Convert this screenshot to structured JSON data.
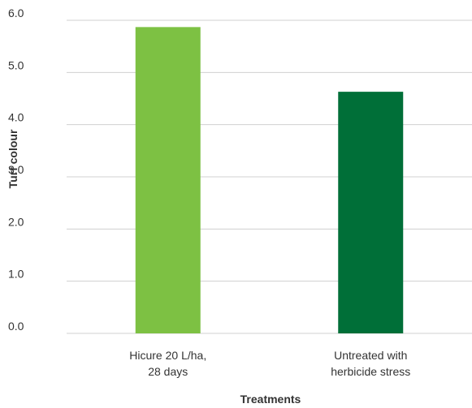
{
  "chart_data": {
    "type": "bar",
    "categories": [
      [
        "Hicure 20 L/ha,",
        "28 days"
      ],
      [
        "Untreated with",
        "herbicide stress"
      ]
    ],
    "values": [
      5.87,
      4.63
    ],
    "colors": [
      "#7dc143",
      "#006f38"
    ],
    "xlabel": "Treatments",
    "ylabel": "Turf colour",
    "ylim": [
      0,
      6
    ],
    "yticks": [
      "0.0",
      "1.0",
      "2.0",
      "3.0",
      "4.0",
      "5.0",
      "6.0"
    ],
    "grid": true,
    "grid_color": "#d0d0d0"
  }
}
